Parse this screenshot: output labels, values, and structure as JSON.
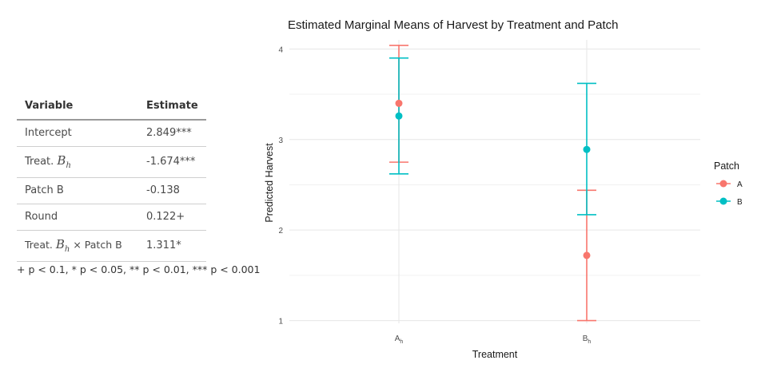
{
  "table": {
    "headers": [
      "Variable",
      "Estimate"
    ],
    "rows": [
      {
        "variable": "Intercept",
        "estimate": "2.849***"
      },
      {
        "variable_prefix": "Treat. ",
        "variable_math": "B",
        "variable_math_sub": "h",
        "variable_suffix": "",
        "estimate": "-1.674***"
      },
      {
        "variable": "Patch B",
        "estimate": "-0.138"
      },
      {
        "variable": "Round",
        "estimate": "0.122+"
      },
      {
        "variable_prefix": "Treat. ",
        "variable_math": "B",
        "variable_math_sub": "h",
        "variable_suffix": " × Patch B",
        "estimate": "1.311*"
      }
    ],
    "footnote": "+ p < 0.1, * p < 0.05, ** p < 0.01, *** p < 0.001"
  },
  "chart_data": {
    "type": "scatter",
    "title": "Estimated Marginal Means of Harvest by Treatment and Patch",
    "xlabel": "Treatment",
    "ylabel": "Predicted Harvest",
    "categories": [
      {
        "base": "A",
        "sub": "h"
      },
      {
        "base": "B",
        "sub": "h"
      }
    ],
    "ylim": [
      0.97,
      4.1
    ],
    "yticks": [
      1,
      2,
      3,
      4
    ],
    "grid": true,
    "legend": {
      "title": "Patch",
      "position": "right"
    },
    "series": [
      {
        "name": "A",
        "color": "#F8766D",
        "points": [
          {
            "category": 0,
            "estimate": 3.4,
            "lower": 2.75,
            "upper": 4.04
          },
          {
            "category": 1,
            "estimate": 1.72,
            "lower": 1.0,
            "upper": 2.44
          }
        ]
      },
      {
        "name": "B",
        "color": "#00BFC4",
        "points": [
          {
            "category": 0,
            "estimate": 3.26,
            "lower": 2.62,
            "upper": 3.9
          },
          {
            "category": 1,
            "estimate": 2.89,
            "lower": 2.17,
            "upper": 3.62
          }
        ]
      }
    ]
  }
}
